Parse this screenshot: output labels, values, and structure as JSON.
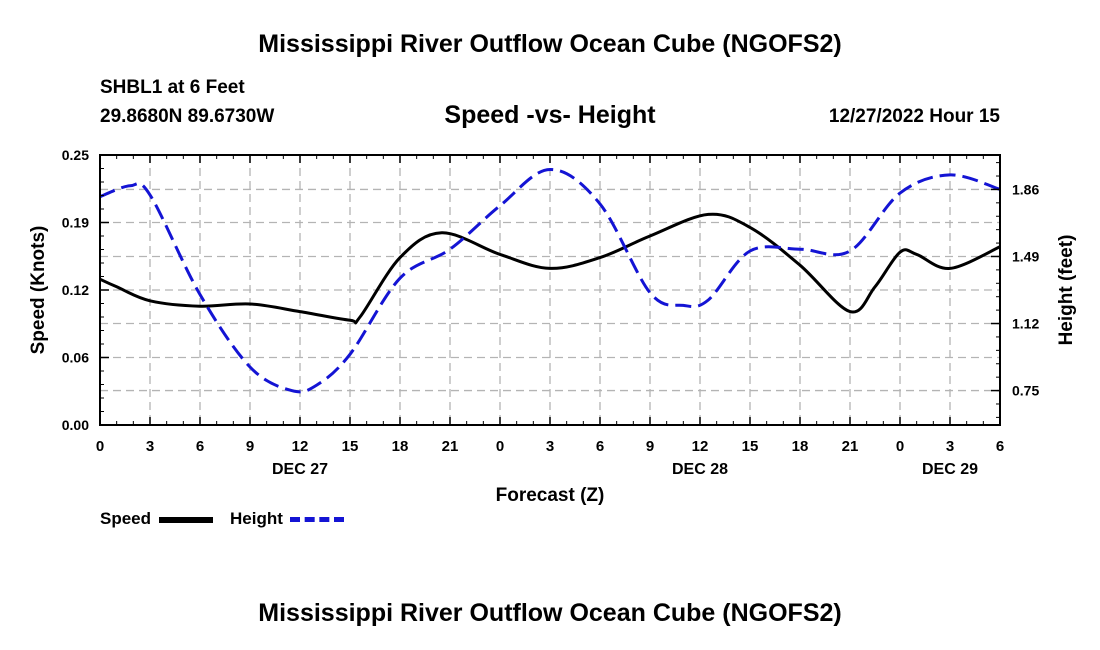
{
  "header": {
    "title": "Mississippi River Outflow Ocean Cube (NGOFS2)",
    "station": "SHBL1 at 6 Feet",
    "coords": "29.8680N  89.6730W",
    "subtitle": "Speed -vs- Height",
    "datetime": "12/27/2022 Hour 15"
  },
  "footer": {
    "title": "Mississippi River Outflow Ocean Cube (NGOFS2)"
  },
  "legend": {
    "speed_label": "Speed",
    "height_label": "Height"
  },
  "colors": {
    "speed": "#000000",
    "height": "#1414d4",
    "grid": "#b4b4b4"
  },
  "chart_data": {
    "type": "line",
    "title": "Speed -vs- Height",
    "xlabel": "Forecast (Z)",
    "ylabel": "Speed (Knots)",
    "y2label": "Height (feet)",
    "xlim": [
      0,
      54
    ],
    "ylim": [
      0,
      0.25
    ],
    "y2lim": [
      0.56,
      2.05
    ],
    "x_ticks": [
      0,
      3,
      6,
      9,
      12,
      15,
      18,
      21,
      24,
      27,
      30,
      33,
      36,
      39,
      42,
      45,
      48,
      51,
      54
    ],
    "x_tick_labels": [
      "0",
      "3",
      "6",
      "9",
      "12",
      "15",
      "18",
      "21",
      "0",
      "3",
      "6",
      "9",
      "12",
      "15",
      "18",
      "21",
      "0",
      "3",
      "6"
    ],
    "day_labels": [
      {
        "x": 12,
        "label": "DEC 27"
      },
      {
        "x": 36,
        "label": "DEC 28"
      },
      {
        "x": 51,
        "label": "DEC 29"
      }
    ],
    "y_ticks": [
      0,
      0.0625,
      0.125,
      0.1875,
      0.25
    ],
    "y_tick_labels": [
      "0.00",
      "0.06",
      "0.12",
      "0.19",
      "0.25"
    ],
    "y2_ticks": [
      0.75,
      1.12,
      1.49,
      1.86
    ],
    "y2_tick_labels": [
      "0.75",
      "1.12",
      "1.49",
      "1.86"
    ],
    "series": [
      {
        "name": "Speed",
        "axis": "left",
        "style": "solid",
        "x": [
          0,
          1,
          3,
          6,
          9,
          12,
          15,
          15.6,
          18,
          20.5,
          24,
          27,
          30,
          33,
          36.5,
          39,
          42,
          45,
          46.5,
          48,
          49,
          51,
          54
        ],
        "values": [
          0.135,
          0.128,
          0.115,
          0.11,
          0.112,
          0.105,
          0.097,
          0.1,
          0.155,
          0.178,
          0.158,
          0.145,
          0.155,
          0.175,
          0.195,
          0.183,
          0.148,
          0.105,
          0.128,
          0.16,
          0.158,
          0.145,
          0.165
        ]
      },
      {
        "name": "Height",
        "axis": "right",
        "style": "dashed",
        "x": [
          0,
          1.8,
          3,
          6,
          9,
          11.5,
          13,
          15,
          18,
          21,
          24,
          27,
          30,
          33,
          35,
          36.5,
          39,
          42,
          45,
          48,
          51,
          54
        ],
        "values": [
          1.82,
          1.88,
          1.83,
          1.28,
          0.88,
          0.75,
          0.78,
          0.95,
          1.37,
          1.53,
          1.77,
          1.97,
          1.78,
          1.29,
          1.22,
          1.25,
          1.52,
          1.53,
          1.52,
          1.84,
          1.94,
          1.86
        ]
      }
    ]
  }
}
